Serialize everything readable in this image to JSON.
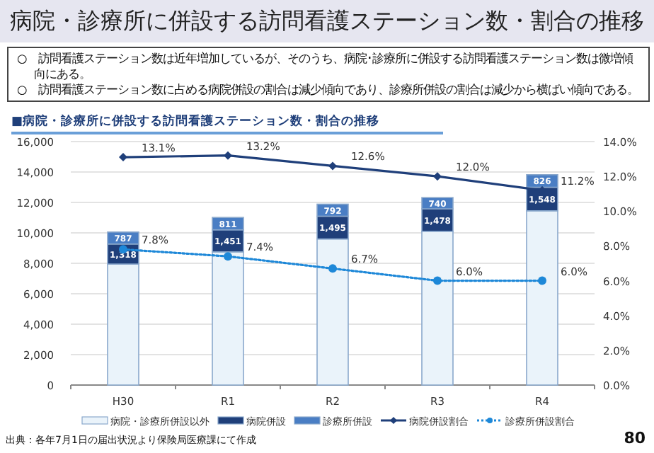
{
  "chart_data": {
    "type": "bar",
    "stacked": true,
    "title": "病院・診療所に併設する訪問看護ステーション数・割合の推移",
    "subtitle": "■病院・診療所に併設する訪問看護ステーション数・割合の推移",
    "annotations": [
      "○　訪問看護ステーション数は近年増加しているが、そのうち、病院･診療所に併設する訪問看護ステーション数は微増傾向にある。",
      "○　訪問看護ステーション数に占める病院併設の割合は減少傾向であり、診療所併設の割合は減少から横ばい傾向である。",
      "出典：各年7月1日の届出状況より保険局医療課にて作成",
      "80"
    ],
    "categories": [
      "H30",
      "R1",
      "R2",
      "R3",
      "R4"
    ],
    "series": [
      {
        "name": "病院・診療所併設以外",
        "color": "#eaf3fa",
        "values": [
          7950,
          8750,
          9600,
          10100,
          11450
        ]
      },
      {
        "name": "病院併設",
        "color": "#1f3f7a",
        "values": [
          1318,
          1451,
          1495,
          1478,
          1548
        ],
        "value_labels": [
          "1,318",
          "1,451",
          "1,495",
          "1,478",
          "1,548"
        ]
      },
      {
        "name": "診療所併設",
        "color": "#4a7ec4",
        "values": [
          787,
          811,
          792,
          740,
          826
        ],
        "value_labels": [
          "787",
          "811",
          "792",
          "740",
          "826"
        ]
      },
      {
        "name": "病院併設割合",
        "type": "line",
        "axis": "y2",
        "color": "#1f3f7a",
        "marker": "diamond",
        "line_style": "solid",
        "values": [
          13.1,
          13.2,
          12.6,
          12.0,
          11.2
        ],
        "value_labels": [
          "13.1%",
          "13.2%",
          "12.6%",
          "12.0%",
          "11.2%"
        ]
      },
      {
        "name": "診療所併設割合",
        "type": "line",
        "axis": "y2",
        "color": "#1e88d8",
        "marker": "circle",
        "line_style": "dotted",
        "values": [
          7.8,
          7.4,
          6.7,
          6.0,
          6.0
        ],
        "value_labels": [
          "7.8%",
          "7.4%",
          "6.7%",
          "6.0%",
          "6.0%"
        ]
      }
    ],
    "ylim": [
      0,
      16000
    ],
    "yticks": [
      0,
      {
        "value": 2000,
        "label": "2,000"
      },
      {
        "value": 4000,
        "label": "4,000"
      },
      {
        "value": 6000,
        "label": "6,000"
      },
      {
        "value": 8000,
        "label": "8,000"
      },
      {
        "value": 10000,
        "label": "10,000"
      },
      {
        "value": 12000,
        "label": "12,000"
      },
      {
        "value": 14000,
        "label": "14,000"
      },
      {
        "value": 16000,
        "label": "16,000"
      }
    ],
    "y2lim": [
      0,
      14
    ],
    "y2ticks": [
      {
        "value": 0,
        "label": "0.0%"
      },
      {
        "value": 2,
        "label": "2.0%"
      },
      {
        "value": 4,
        "label": "4.0%"
      },
      {
        "value": 6,
        "label": "6.0%"
      },
      {
        "value": 8,
        "label": "8.0%"
      },
      {
        "value": 10,
        "label": "10.0%"
      },
      {
        "value": 12,
        "label": "12.0%"
      },
      {
        "value": 14,
        "label": "14.0%"
      }
    ],
    "grid": "y",
    "legend": "bottom"
  }
}
